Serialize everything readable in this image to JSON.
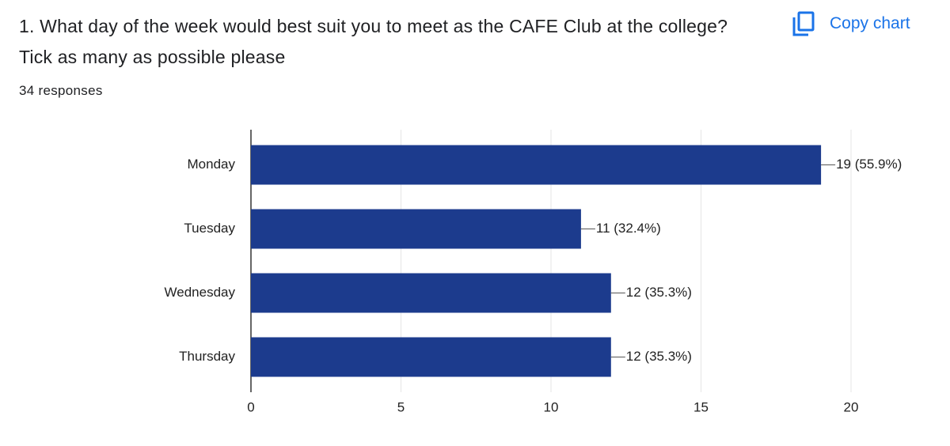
{
  "ui": {
    "copy_button": "Copy chart"
  },
  "chart_data": {
    "type": "bar",
    "orientation": "horizontal",
    "title": "1. What day of the week would best suit you to meet as the CAFE Club at the college? Tick as many as possible please",
    "subtitle": "34 responses",
    "categories": [
      "Monday",
      "Tuesday",
      "Wednesday",
      "Thursday"
    ],
    "values": [
      19,
      11,
      12,
      12
    ],
    "value_labels": [
      "19 (55.9%)",
      "11 (32.4%)",
      "12 (35.3%)",
      "12 (35.3%)"
    ],
    "color": "#1c3b8d",
    "xlim": [
      0,
      20
    ],
    "xticks": [
      0,
      5,
      10,
      15,
      20
    ],
    "grid": true
  }
}
